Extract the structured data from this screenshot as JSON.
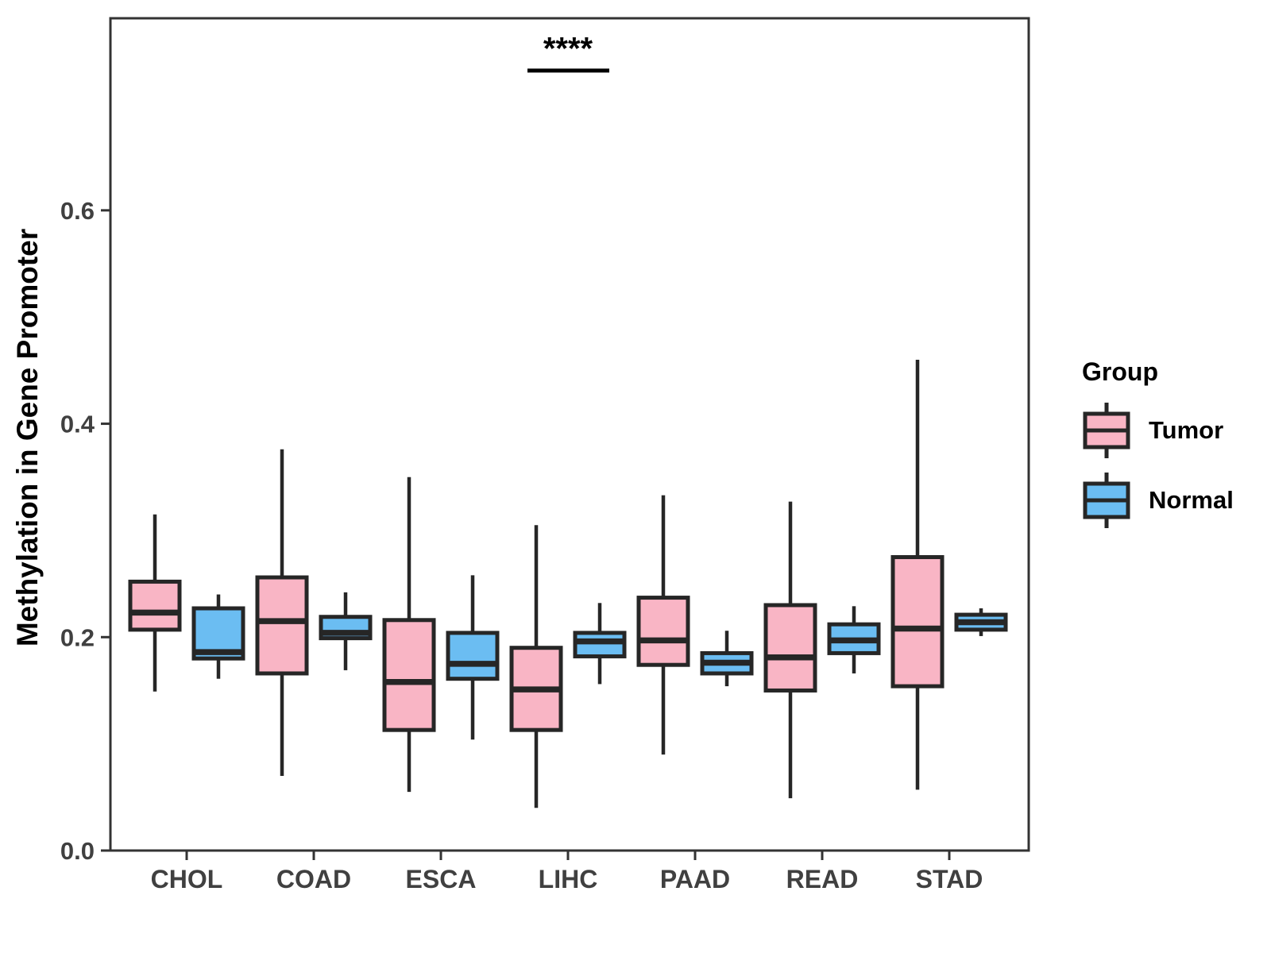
{
  "chart_data": {
    "type": "grouped_boxplot",
    "title": "",
    "xlabel": "",
    "ylabel": "Methylation in Gene Promoter",
    "ylim": [
      0,
      0.78
    ],
    "yticks": [
      "0.0",
      "0.2",
      "0.4",
      "0.6"
    ],
    "ytick_values": [
      0.0,
      0.2,
      0.4,
      0.6
    ],
    "grid": false,
    "categories": [
      "CHOL",
      "COAD",
      "ESCA",
      "LIHC",
      "PAAD",
      "READ",
      "STAD"
    ],
    "box_stats_order": [
      "whisker_low",
      "q1",
      "median",
      "q3",
      "whisker_high"
    ],
    "series": [
      {
        "name": "Tumor",
        "color": "#F9B5C5",
        "boxes": [
          [
            0.149,
            0.207,
            0.223,
            0.252,
            0.315
          ],
          [
            0.07,
            0.166,
            0.215,
            0.256,
            0.376
          ],
          [
            0.055,
            0.113,
            0.158,
            0.216,
            0.35
          ],
          [
            0.04,
            0.113,
            0.151,
            0.19,
            0.305
          ],
          [
            0.09,
            0.174,
            0.197,
            0.237,
            0.333
          ],
          [
            0.049,
            0.15,
            0.181,
            0.23,
            0.327
          ],
          [
            0.057,
            0.154,
            0.208,
            0.275,
            0.46
          ]
        ]
      },
      {
        "name": "Normal",
        "color": "#6BBDF2",
        "boxes": [
          [
            0.161,
            0.18,
            0.186,
            0.227,
            0.24
          ],
          [
            0.169,
            0.199,
            0.204,
            0.219,
            0.242
          ],
          [
            0.104,
            0.161,
            0.175,
            0.204,
            0.258
          ],
          [
            0.156,
            0.182,
            0.196,
            0.204,
            0.232
          ],
          [
            0.154,
            0.166,
            0.176,
            0.185,
            0.206
          ],
          [
            0.166,
            0.185,
            0.197,
            0.212,
            0.229
          ],
          [
            0.201,
            0.207,
            0.214,
            0.221,
            0.227
          ]
        ]
      }
    ],
    "annotation": {
      "text": "****",
      "category_index": 3,
      "line_y": 0.731,
      "text_y": 0.752
    },
    "legend": {
      "title": "Group",
      "position": "right",
      "entries": [
        {
          "label": "Tumor",
          "color": "#F9B5C5"
        },
        {
          "label": "Normal",
          "color": "#6BBDF2"
        }
      ]
    },
    "stroke_color": "#262626",
    "axis_text_color": "#404040"
  }
}
